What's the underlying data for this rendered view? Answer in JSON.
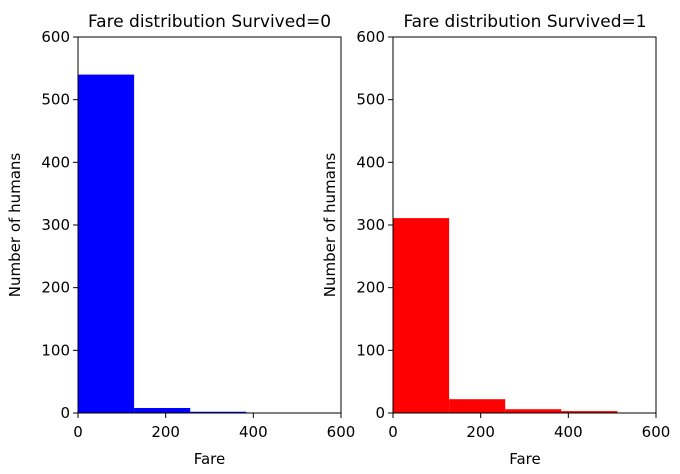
{
  "chart_data": [
    {
      "type": "bar",
      "title": "Fare distribution Survived=0",
      "xlabel": "Fare",
      "ylabel": "Number of humans",
      "xlim": [
        0,
        600
      ],
      "ylim": [
        0,
        600
      ],
      "xticks": [
        0,
        200,
        400,
        600
      ],
      "yticks": [
        0,
        100,
        200,
        300,
        400,
        500,
        600
      ],
      "color": "#0000ff",
      "bins": [
        {
          "x0": 0,
          "x1": 128,
          "value": 540
        },
        {
          "x0": 128,
          "x1": 256,
          "value": 8
        },
        {
          "x0": 256,
          "x1": 384,
          "value": 2
        },
        {
          "x0": 384,
          "x1": 512,
          "value": 0
        }
      ]
    },
    {
      "type": "bar",
      "title": "Fare distribution Survived=1",
      "xlabel": "Fare",
      "ylabel": "Number of humans",
      "xlim": [
        0,
        600
      ],
      "ylim": [
        0,
        600
      ],
      "xticks": [
        0,
        200,
        400,
        600
      ],
      "yticks": [
        0,
        100,
        200,
        300,
        400,
        500,
        600
      ],
      "color": "#ff0000",
      "bins": [
        {
          "x0": 0,
          "x1": 128,
          "value": 311
        },
        {
          "x0": 128,
          "x1": 256,
          "value": 22
        },
        {
          "x0": 256,
          "x1": 384,
          "value": 6
        },
        {
          "x0": 384,
          "x1": 512,
          "value": 3
        }
      ]
    }
  ]
}
